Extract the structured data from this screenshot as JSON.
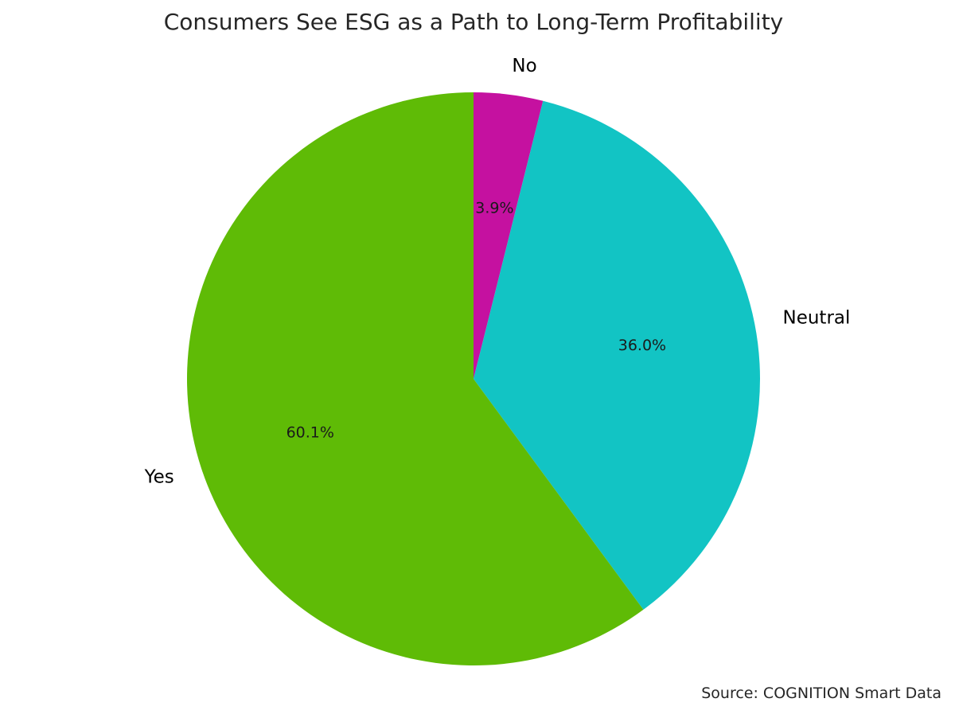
{
  "chart_data": {
    "type": "pie",
    "title": "Consumers See ESG as a Path to Long-Term Profitability",
    "start_angle_deg": 90,
    "direction": "clockwise",
    "slices": [
      {
        "label": "No",
        "value": 3.9,
        "pct_label": "3.9%",
        "color": "#C511A0"
      },
      {
        "label": "Neutral",
        "value": 36.0,
        "pct_label": "36.0%",
        "color": "#12C4C4"
      },
      {
        "label": "Yes",
        "value": 60.1,
        "pct_label": "60.1%",
        "color": "#5FBB06"
      }
    ]
  },
  "footer": {
    "source": "Source: COGNITION Smart Data"
  }
}
